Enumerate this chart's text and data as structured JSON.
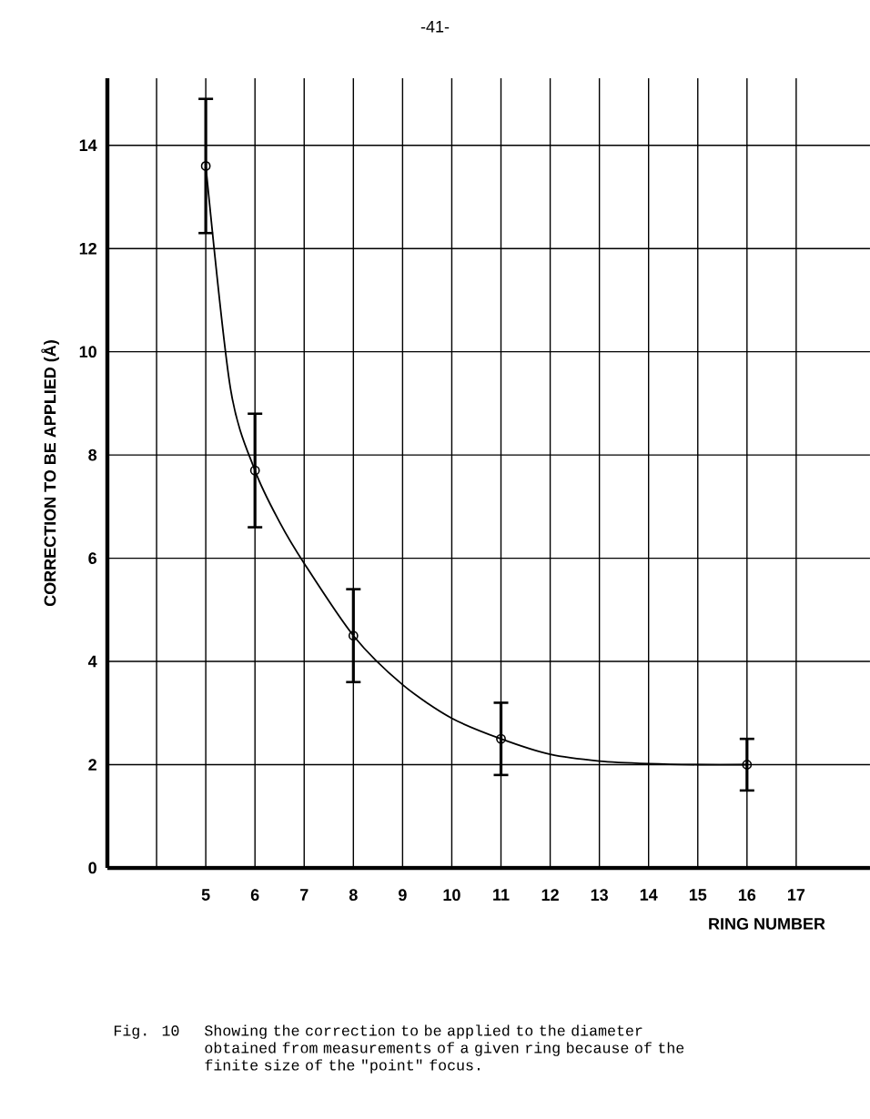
{
  "chart_data": {
    "type": "scatter",
    "ylabel": "CORRECTION TO BE APPLIED (Å)",
    "xlabel": "RING NUMBER",
    "annotations": [
      "-41-",
      "Fig. 10",
      "Showing the correction to be applied to the diameter obtained from measurements of a given ring because of the finite size of the \"point\" focus."
    ],
    "x": [
      5,
      6,
      8,
      11,
      16
    ],
    "series": [
      {
        "color": "#000000",
        "marker": "circle",
        "values": [
          13.6,
          7.7,
          4.5,
          2.5,
          2.0
        ],
        "errors": [
          [
            12.3,
            14.9
          ],
          [
            6.6,
            8.8
          ],
          [
            3.6,
            5.4
          ],
          [
            1.8,
            3.2
          ],
          [
            1.5,
            2.5
          ]
        ]
      },
      {
        "type": "line",
        "color": "#000000",
        "marker": "none",
        "x": [
          5,
          5.5,
          6,
          6.5,
          7,
          8,
          9,
          10,
          11,
          12,
          13,
          14,
          15,
          16
        ],
        "values": [
          13.6,
          9.3,
          7.7,
          6.7,
          5.9,
          4.5,
          3.55,
          2.9,
          2.5,
          2.2,
          2.07,
          2.02,
          2.0,
          2.0
        ]
      }
    ],
    "xlim": [
      3,
      18.5
    ],
    "ylim": [
      0,
      15.3
    ],
    "xticks": [
      {
        "value": 4,
        "label": null
      },
      5,
      6,
      7,
      8,
      9,
      10,
      11,
      12,
      13,
      14,
      15,
      16,
      17
    ],
    "yticks": [
      0,
      2,
      4,
      6,
      8,
      10,
      12,
      14
    ],
    "grid": true
  }
}
